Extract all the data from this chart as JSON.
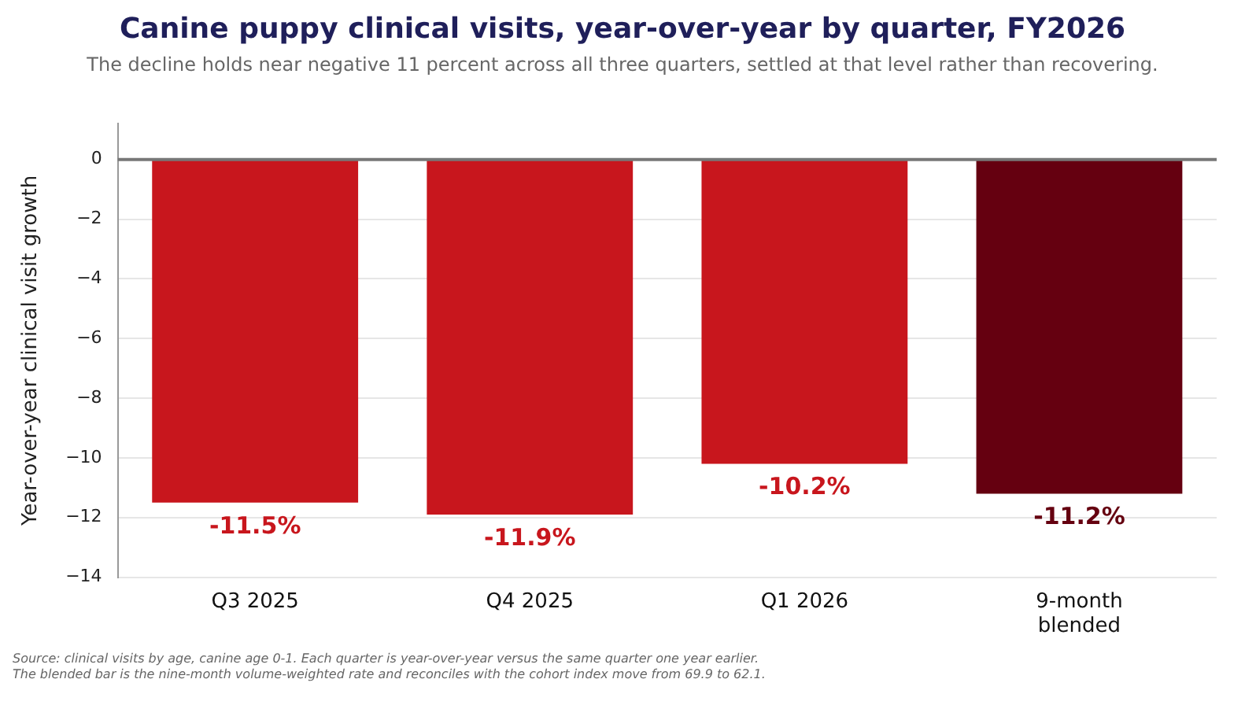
{
  "chart_data": {
    "type": "bar",
    "title": "Canine puppy clinical visits, year-over-year by quarter, FY2026",
    "subtitle": "The decline holds near negative 11 percent across all three quarters, settled at that level rather than recovering.",
    "ylabel": "Year-over-year clinical visit growth",
    "categories": [
      "Q3 2025",
      "Q4 2025",
      "Q1 2026",
      "9-month\nblended"
    ],
    "values": [
      -11.5,
      -11.9,
      -10.2,
      -11.2
    ],
    "colors": [
      "#c8161d",
      "#c8161d",
      "#c8161d",
      "#650010"
    ],
    "value_labels": [
      "-11.5%",
      "-11.9%",
      "-10.2%",
      "-11.2%"
    ],
    "ylim": [
      -14,
      1.2
    ],
    "yticks": [
      0,
      -2,
      -4,
      -6,
      -8,
      -10,
      -12,
      -14
    ],
    "grid": "y",
    "legend": false,
    "ref_lines": [
      {
        "axis": "y",
        "value": 0,
        "color": "#777777"
      }
    ],
    "annotations": [
      "Source: clinical visits by age, canine age 0-1. Each quarter is year-over-year versus the same quarter one year earlier.",
      "The blended bar is the nine-month volume-weighted rate and reconciles with the cohort index move from 69.9 to 62.1."
    ]
  }
}
